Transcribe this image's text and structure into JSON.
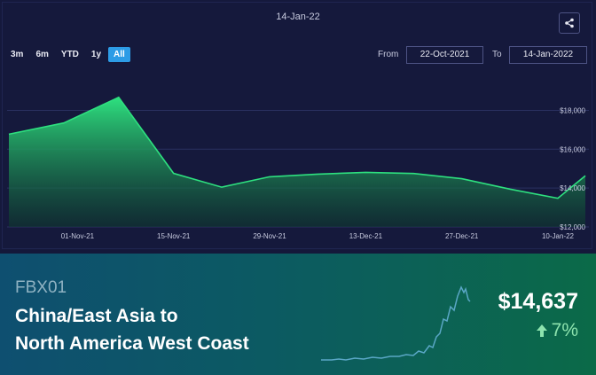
{
  "header": {
    "date_title": "14-Jan-22"
  },
  "range_buttons": [
    {
      "label": "3m",
      "active": false
    },
    {
      "label": "6m",
      "active": false
    },
    {
      "label": "YTD",
      "active": false
    },
    {
      "label": "1y",
      "active": false
    },
    {
      "label": "All",
      "active": true
    }
  ],
  "date_range": {
    "from_label": "From",
    "from_value": "22-Oct-2021",
    "to_label": "To",
    "to_value": "14-Jan-2022"
  },
  "share_icon": "share-icon",
  "chart_data": {
    "type": "area",
    "x": [
      "2021-10-22",
      "2021-10-30",
      "2021-11-07",
      "2021-11-15",
      "2021-11-22",
      "2021-11-29",
      "2021-12-06",
      "2021-12-13",
      "2021-12-20",
      "2021-12-27",
      "2022-01-03",
      "2022-01-10",
      "2022-01-14"
    ],
    "y": [
      16770,
      17350,
      18670,
      14760,
      14050,
      14580,
      14720,
      14810,
      14750,
      14480,
      13950,
      13480,
      14637
    ],
    "xticks": [
      "01-Nov-21",
      "15-Nov-21",
      "29-Nov-21",
      "13-Dec-21",
      "27-Dec-21",
      "10-Jan-22"
    ],
    "yticks": [
      "$12,000",
      "$14,000",
      "$16,000",
      "$18,000"
    ],
    "ylim": [
      12000,
      19800
    ],
    "title": "",
    "xlabel": "",
    "ylabel": "",
    "grid": true,
    "line_color": "#2ee07f"
  },
  "banner": {
    "code": "FBX01",
    "title_line1": "China/East Asia to",
    "title_line2": "North America West Coast",
    "price": "$14,637",
    "change": "7%",
    "change_icon": "arrow-up-icon"
  },
  "colors": {
    "accent": "#2d9ce6",
    "background": "#15193c",
    "line": "#2ee07f",
    "change": "#8de3ae"
  }
}
